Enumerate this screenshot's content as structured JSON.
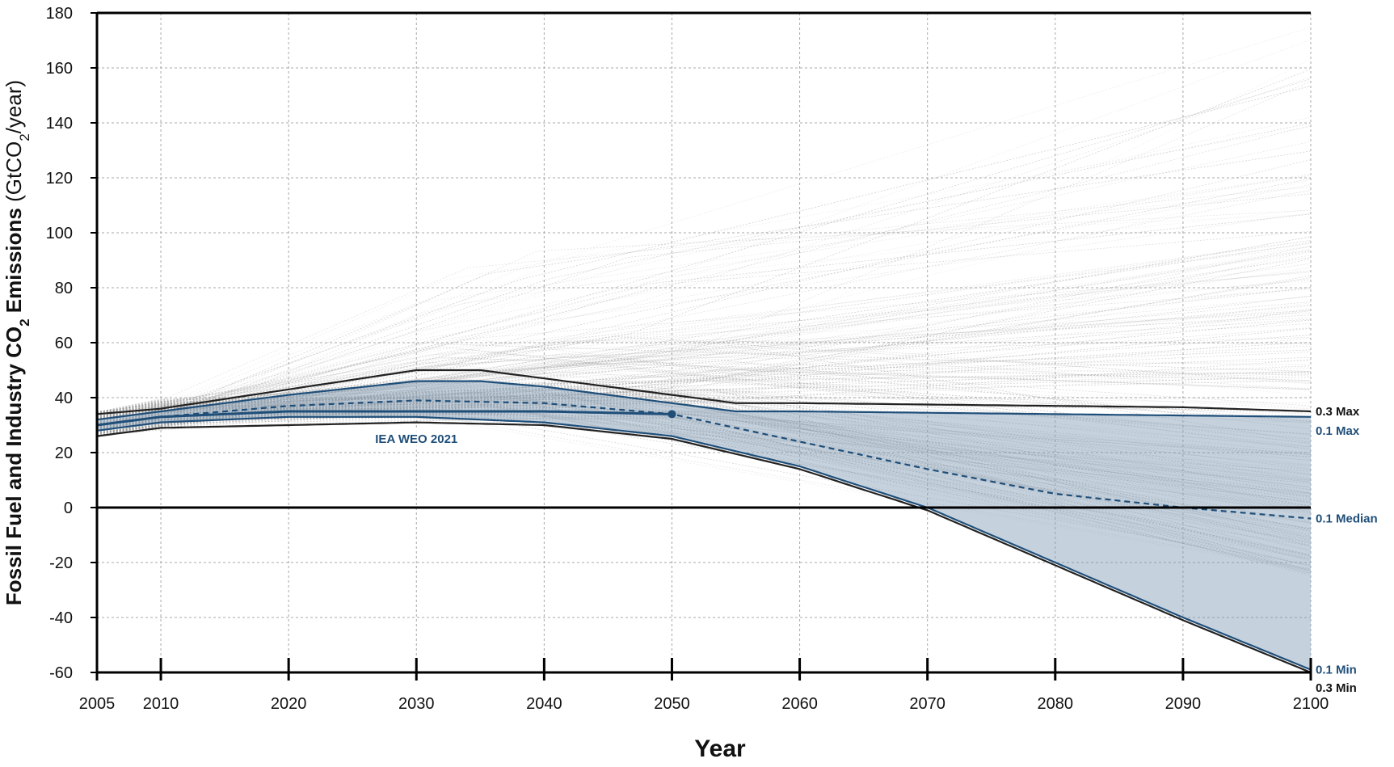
{
  "chart_data": {
    "type": "line",
    "xlabel": "Year",
    "ylabel_parts": [
      "Fossil Fuel and Industry CO",
      "2",
      " Emissions",
      " (GtCO",
      "2",
      "/year)"
    ],
    "xlim": [
      2005,
      2100
    ],
    "ylim": [
      -60,
      180
    ],
    "x_ticks": [
      2005,
      2010,
      2020,
      2030,
      2040,
      2050,
      2060,
      2070,
      2080,
      2090,
      2100
    ],
    "x_tick_labels": [
      "2005",
      "2010",
      "2020",
      "2030",
      "2040",
      "2050",
      "2060",
      "2070",
      "2080",
      "2090",
      "2100"
    ],
    "y_ticks": [
      -60,
      -40,
      -20,
      0,
      20,
      40,
      60,
      80,
      100,
      120,
      140,
      160,
      180
    ],
    "y_tick_labels": [
      "-60",
      "-40",
      "-20",
      "0",
      "20",
      "40",
      "60",
      "80",
      "100",
      "120",
      "140",
      "160",
      "180"
    ],
    "grid": true,
    "colors": {
      "blue": "#1f4e79",
      "band_fill": "#7f9bb5",
      "dark": "#222222",
      "scenario": "#9a9a9a",
      "grid": "#a8a8a8"
    },
    "series": [
      {
        "name": "0.3 Max",
        "color": "#222222",
        "x": [
          2005,
          2010,
          2020,
          2030,
          2035,
          2040,
          2045,
          2050,
          2055,
          2060,
          2070,
          2080,
          2090,
          2100
        ],
        "y": [
          34,
          36,
          43,
          50,
          50,
          47,
          44,
          41,
          38,
          38,
          37.5,
          37,
          36.5,
          35
        ]
      },
      {
        "name": "0.1 Max",
        "color": "#1f4e79",
        "x": [
          2005,
          2010,
          2020,
          2030,
          2035,
          2040,
          2045,
          2050,
          2055,
          2060,
          2070,
          2080,
          2090,
          2100
        ],
        "y": [
          32,
          35,
          41,
          46,
          46,
          44,
          41,
          38,
          35,
          35,
          34.5,
          34,
          33.5,
          33
        ]
      },
      {
        "name": "0.1 Median",
        "color": "#1f4e79",
        "dashed": true,
        "x": [
          2005,
          2010,
          2020,
          2030,
          2040,
          2050,
          2060,
          2070,
          2080,
          2090,
          2100
        ],
        "y": [
          30,
          33,
          37,
          39,
          38,
          34,
          24,
          14,
          5,
          0,
          -4
        ]
      },
      {
        "name": "0.1 Min",
        "color": "#1f4e79",
        "x": [
          2005,
          2010,
          2020,
          2030,
          2040,
          2050,
          2060,
          2070,
          2080,
          2090,
          2100
        ],
        "y": [
          28,
          31,
          33,
          33,
          31,
          26,
          15,
          0,
          -20,
          -40,
          -59
        ]
      },
      {
        "name": "0.3 Min",
        "color": "#222222",
        "x": [
          2005,
          2010,
          2020,
          2030,
          2040,
          2050,
          2060,
          2070,
          2080,
          2090,
          2100
        ],
        "y": [
          26,
          29,
          30,
          31,
          30,
          25,
          14,
          -1,
          -21,
          -41,
          -60
        ]
      },
      {
        "name": "IEA WEO 2021",
        "color": "#1f4e79",
        "x": [
          2005,
          2010,
          2020,
          2030,
          2040,
          2050
        ],
        "y": [
          30,
          33,
          35,
          35,
          35,
          34
        ]
      }
    ],
    "annotations": [
      {
        "text": "IEA WEO 2021",
        "x": 2030,
        "y": 25,
        "color": "#1f4e79"
      }
    ],
    "end_labels": [
      {
        "text": "0.3 Max",
        "y": 35,
        "color": "#111111"
      },
      {
        "text": "0.1 Max",
        "y": 28,
        "color": "#1f4e79"
      },
      {
        "text": "0.1 Median",
        "y": -4,
        "color": "#1f4e79"
      },
      {
        "text": "0.1 Min",
        "y": -59,
        "color": "#1f4e79"
      },
      {
        "text": "0.3 Min",
        "y": -65,
        "color": "#111111"
      }
    ],
    "scenario_bundle": {
      "description": "many thin gray scenario trajectories",
      "start_range": [
        26,
        35
      ],
      "end_range_2100": [
        -25,
        175
      ]
    }
  }
}
